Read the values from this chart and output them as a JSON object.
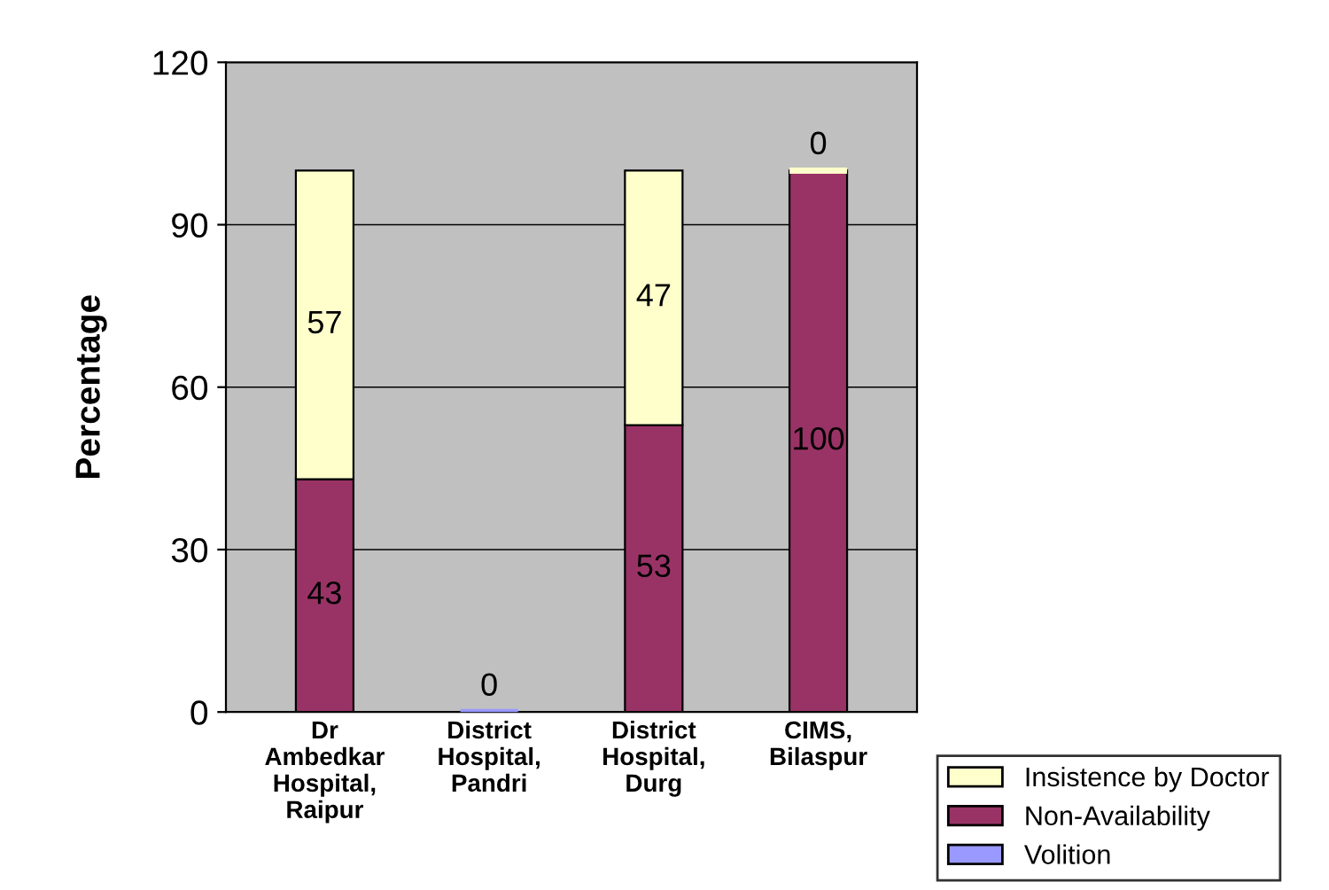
{
  "chart_data": {
    "type": "bar",
    "stacked": true,
    "ylabel": "Percentage",
    "categories": [
      "Dr\nAmbedkar\nHospital,\nRaipur",
      "District\nHospital,\nPandri",
      "District\nHospital,\nDurg",
      "CIMS,\nBilaspur"
    ],
    "series": [
      {
        "name": "Volition",
        "color": "#9999ff",
        "values": [
          null,
          0,
          null,
          null
        ],
        "value_labels": [
          null,
          "0",
          null,
          null
        ]
      },
      {
        "name": "Non-Availability",
        "color": "#993366",
        "values": [
          43,
          null,
          53,
          100
        ],
        "value_labels": [
          "43",
          null,
          "53",
          "100"
        ]
      },
      {
        "name": "Insistence by Doctor",
        "color": "#ffffcc",
        "values": [
          57,
          null,
          47,
          0
        ],
        "value_labels": [
          "57",
          null,
          "47",
          "0"
        ]
      }
    ],
    "ylim": [
      0,
      120
    ],
    "yticks": [
      0,
      30,
      60,
      90,
      120
    ],
    "grid": "y",
    "legend": "bottom right"
  }
}
